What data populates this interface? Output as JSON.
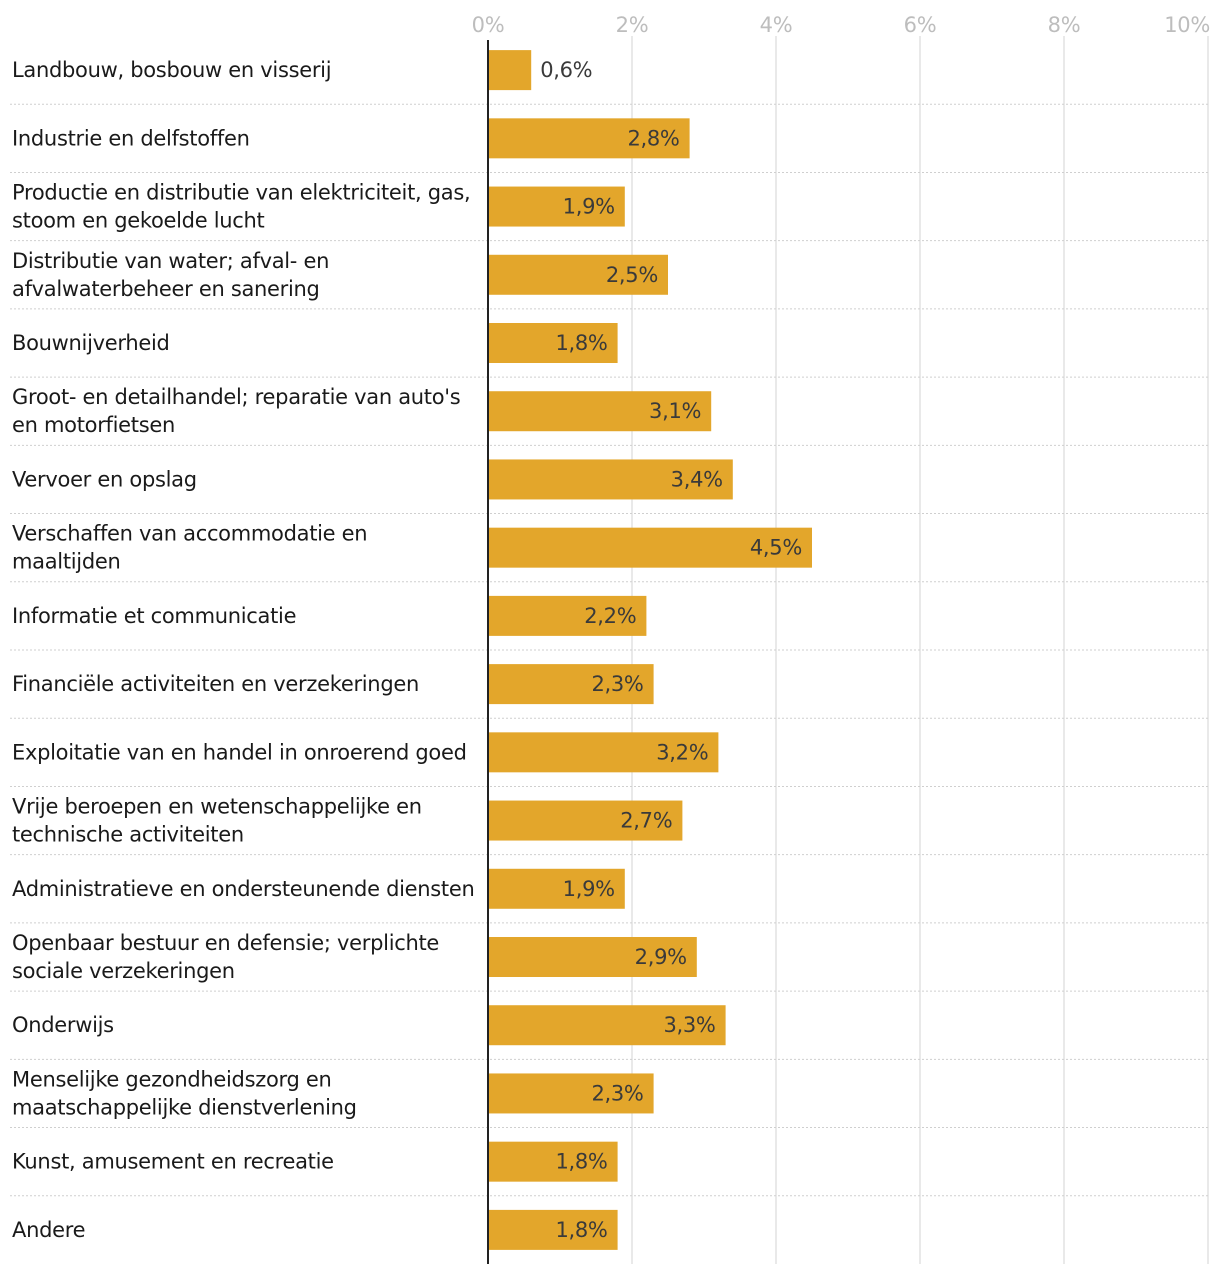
{
  "chart_data": {
    "type": "bar",
    "orientation": "horizontal",
    "categories": [
      "Landbouw, bosbouw en visserij",
      "Industrie en delfstoffen",
      "Productie en distributie van elektriciteit, gas, stoom en gekoelde lucht",
      "Distributie van water; afval- en afvalwaterbeheer en sanering",
      "Bouwnijverheid",
      "Groot- en detailhandel; reparatie van auto's en motorfietsen",
      "Vervoer en opslag",
      "Verschaffen van accommodatie en maaltijden",
      "Informatie et communicatie",
      "Financiële activiteiten en verzekeringen",
      "Exploitatie van en handel in onroerend goed",
      "Vrije beroepen en wetenschappelijke en technische activiteiten",
      "Administratieve en ondersteunende diensten",
      "Openbaar bestuur en defensie; verplichte sociale verzekeringen",
      "Onderwijs",
      "Menselijke gezondheidszorg en maatschappelijke dienstverlening",
      "Kunst, amusement en recreatie",
      "Andere"
    ],
    "category_lines": [
      [
        "Landbouw, bosbouw en visserij"
      ],
      [
        "Industrie en delfstoffen"
      ],
      [
        "Productie en distributie van elektriciteit, gas,",
        "stoom en gekoelde lucht"
      ],
      [
        "Distributie van water; afval- en",
        "afvalwaterbeheer en sanering"
      ],
      [
        "Bouwnijverheid"
      ],
      [
        "Groot- en detailhandel; reparatie van auto's",
        "en motorfietsen"
      ],
      [
        "Vervoer en opslag"
      ],
      [
        "Verschaffen van accommodatie en",
        "maaltijden"
      ],
      [
        "Informatie et communicatie"
      ],
      [
        "Financiële activiteiten en verzekeringen"
      ],
      [
        "Exploitatie van en handel in onroerend goed"
      ],
      [
        "Vrije beroepen en wetenschappelijke en",
        "technische activiteiten"
      ],
      [
        "Administratieve en ondersteunende diensten"
      ],
      [
        "Openbaar bestuur en defensie; verplichte",
        "sociale verzekeringen"
      ],
      [
        "Onderwijs"
      ],
      [
        "Menselijke gezondheidszorg en",
        "maatschappelijke dienstverlening"
      ],
      [
        "Kunst, amusement en recreatie"
      ],
      [
        "Andere"
      ]
    ],
    "values": [
      0.6,
      2.8,
      1.9,
      2.5,
      1.8,
      3.1,
      3.4,
      4.5,
      2.2,
      2.3,
      3.2,
      2.7,
      1.9,
      2.9,
      3.3,
      2.3,
      1.8,
      1.8
    ],
    "value_labels": [
      "0,6%",
      "2,8%",
      "1,9%",
      "2,5%",
      "1,8%",
      "3,1%",
      "3,4%",
      "4,5%",
      "2,2%",
      "2,3%",
      "3,2%",
      "2,7%",
      "1,9%",
      "2,9%",
      "3,3%",
      "2,3%",
      "1,8%",
      "1,8%"
    ],
    "xlim": [
      0,
      10
    ],
    "xticks": [
      0,
      2,
      4,
      6,
      8,
      10
    ],
    "xtick_labels": [
      "0%",
      "2%",
      "4%",
      "6%",
      "8%",
      "10%"
    ],
    "title": "",
    "xlabel": "",
    "ylabel": "",
    "grid": true,
    "legend": "none",
    "colors": {
      "bar": "#E3A62B",
      "grid": "#e2e2e2",
      "axis": "#222222",
      "row_separator": "#cfcfcf",
      "label_text": "#1a1a1a",
      "tick_text": "#bdbdbd",
      "value_text": "#3a3a3a"
    }
  }
}
